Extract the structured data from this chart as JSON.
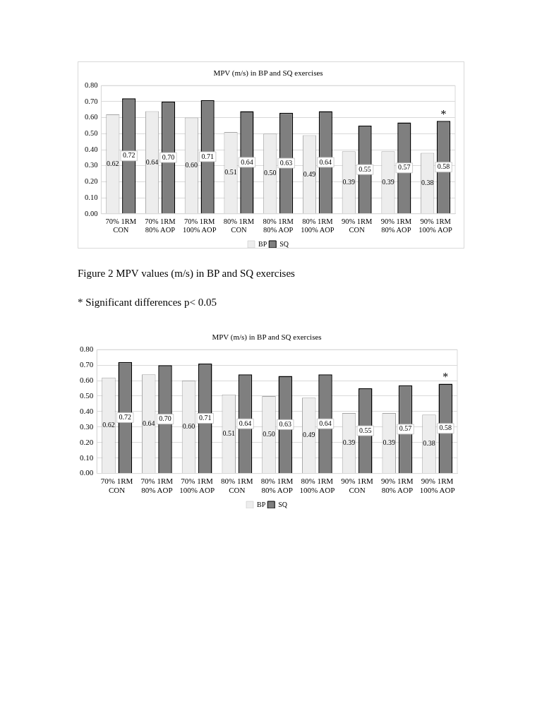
{
  "chart_data": [
    {
      "type": "bar",
      "title": "MPV (m/s) in BP and SQ exercises",
      "categories": [
        "70% 1RM CON",
        "70% 1RM 80% AOP",
        "70% 1RM 100% AOP",
        "80% 1RM CON",
        "80% 1RM 80% AOP",
        "80% 1RM 100% AOP",
        "90% 1RM CON",
        "90% 1RM 80% AOP",
        "90% 1RM 100% AOP"
      ],
      "series": [
        {
          "name": "BP",
          "color": "#ededed",
          "values": [
            0.62,
            0.64,
            0.6,
            0.51,
            0.5,
            0.49,
            0.39,
            0.39,
            0.38
          ],
          "value_labels": [
            "0.62",
            "0.64",
            "0.60",
            "0.51",
            "0.50",
            "0.49",
            "0.39",
            "0.39",
            "0.38"
          ]
        },
        {
          "name": "SQ",
          "color": "#7f7f7f",
          "values": [
            0.72,
            0.7,
            0.71,
            0.64,
            0.63,
            0.64,
            0.55,
            0.57,
            0.58
          ],
          "value_labels": [
            "0.72",
            "0.70",
            "0.71",
            "0.64",
            "0.63",
            "0.64",
            "0.55",
            "0.57",
            "0.58"
          ]
        }
      ],
      "ylim": [
        0,
        0.8
      ],
      "yticks": [
        {
          "value": 0,
          "label": "0.00"
        },
        {
          "value": 0.1,
          "label": "0.10"
        },
        {
          "value": 0.2,
          "label": "0.20"
        },
        {
          "value": 0.3,
          "label": "0.30"
        },
        {
          "value": 0.4,
          "label": "0.40"
        },
        {
          "value": 0.5,
          "label": "0.50"
        },
        {
          "value": 0.6,
          "label": "0.60"
        },
        {
          "value": 0.7,
          "label": "0.70"
        },
        {
          "value": 0.8,
          "label": "0.80"
        }
      ],
      "grid": "y",
      "legend": "bottom",
      "annotations": [
        "Figure 2 MPV values (m/s) in BP and SQ exercises",
        "* Significant differences p< 0.05",
        {
          "text": "*",
          "x": "90% 1RM 100% AOP",
          "y": 0.58
        }
      ]
    },
    {
      "type": "bar",
      "title": "MPV (m/s) in BP and SQ exercises",
      "categories": [
        "70% 1RM CON",
        "70% 1RM 80% AOP",
        "70% 1RM 100% AOP",
        "80% 1RM CON",
        "80% 1RM 80% AOP",
        "80% 1RM 100% AOP",
        "90% 1RM CON",
        "90% 1RM 80% AOP",
        "90% 1RM 100% AOP"
      ],
      "series": [
        {
          "name": "BP",
          "color": "#ededed",
          "values": [
            0.62,
            0.64,
            0.6,
            0.51,
            0.5,
            0.49,
            0.39,
            0.39,
            0.38
          ],
          "value_labels": [
            "0.62",
            "0.64",
            "0.60",
            "0.51",
            "0.50",
            "0.49",
            "0.39",
            "0.39",
            "0.38"
          ]
        },
        {
          "name": "SQ",
          "color": "#7f7f7f",
          "values": [
            0.72,
            0.7,
            0.71,
            0.64,
            0.63,
            0.64,
            0.55,
            0.57,
            0.58
          ],
          "value_labels": [
            "0.72",
            "0.70",
            "0.71",
            "0.64",
            "0.63",
            "0.64",
            "0.55",
            "0.57",
            "0.58"
          ]
        }
      ],
      "ylim": [
        0,
        0.8
      ],
      "yticks": [
        {
          "value": 0,
          "label": "0.00"
        },
        {
          "value": 0.1,
          "label": "0.10"
        },
        {
          "value": 0.2,
          "label": "0.20"
        },
        {
          "value": 0.3,
          "label": "0.30"
        },
        {
          "value": 0.4,
          "label": "0.40"
        },
        {
          "value": 0.5,
          "label": "0.50"
        },
        {
          "value": 0.6,
          "label": "0.60"
        },
        {
          "value": 0.7,
          "label": "0.70"
        },
        {
          "value": 0.8,
          "label": "0.80"
        }
      ],
      "grid": "y",
      "legend": "bottom",
      "annotations": [
        {
          "text": "*",
          "x": "90% 1RM 100% AOP",
          "y": 0.58
        }
      ]
    }
  ]
}
